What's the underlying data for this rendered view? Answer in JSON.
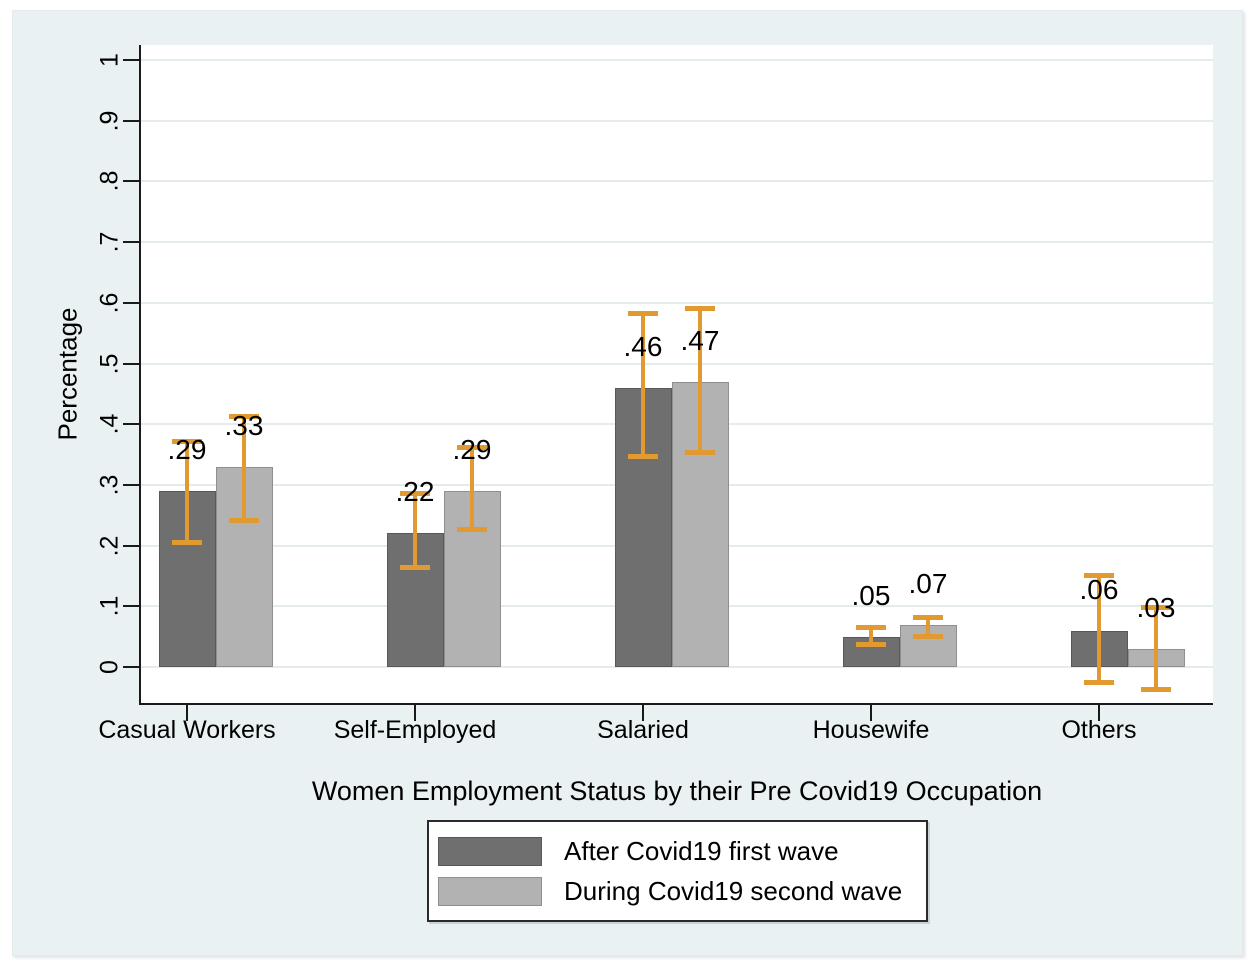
{
  "figure": {
    "background_color": "#eaf1f2",
    "plot_background_color": "#ffffff",
    "grid_color": "#e5eced",
    "axis_color": "#1a1a1a"
  },
  "chart_data": {
    "type": "bar",
    "title": "",
    "xlabel": "Women Employment Status by their Pre Covid19 Occupation",
    "ylabel": "Percentage",
    "categories": [
      "Casual Workers",
      "Self-Employed",
      "Salaried",
      "Housewife",
      "Others"
    ],
    "series": [
      {
        "name": "After Covid19 first wave",
        "color": "#6f6f6f",
        "border_color": "#585858",
        "values": [
          0.29,
          0.22,
          0.46,
          0.05,
          0.06
        ],
        "value_labels": [
          ".29",
          ".22",
          ".46",
          ".05",
          ".06"
        ],
        "ci_low": [
          0.205,
          0.163,
          0.346,
          0.036,
          -0.027
        ],
        "ci_high": [
          0.372,
          0.287,
          0.583,
          0.066,
          0.152
        ]
      },
      {
        "name": "During Covid19 second wave",
        "color": "#b2b2b2",
        "border_color": "#8f8f8f",
        "values": [
          0.33,
          0.29,
          0.47,
          0.07,
          0.03
        ],
        "value_labels": [
          ".33",
          ".29",
          ".47",
          ".07",
          ".03"
        ],
        "ci_low": [
          0.24,
          0.226,
          0.352,
          0.049,
          -0.038
        ],
        "ci_high": [
          0.413,
          0.362,
          0.591,
          0.082,
          0.099
        ]
      }
    ],
    "error_bar_color": "#e19a2f",
    "yticks": [
      0,
      0.1,
      0.2,
      0.3,
      0.4,
      0.5,
      0.6,
      0.7,
      0.8,
      0.9,
      1
    ],
    "ytick_labels": [
      "0",
      ".1",
      ".2",
      ".3",
      ".4",
      ".5",
      ".6",
      ".7",
      ".8",
      ".9",
      "1"
    ],
    "ylim": [
      -0.06,
      1.025
    ],
    "grid": true,
    "legend_position": "bottom-center"
  }
}
